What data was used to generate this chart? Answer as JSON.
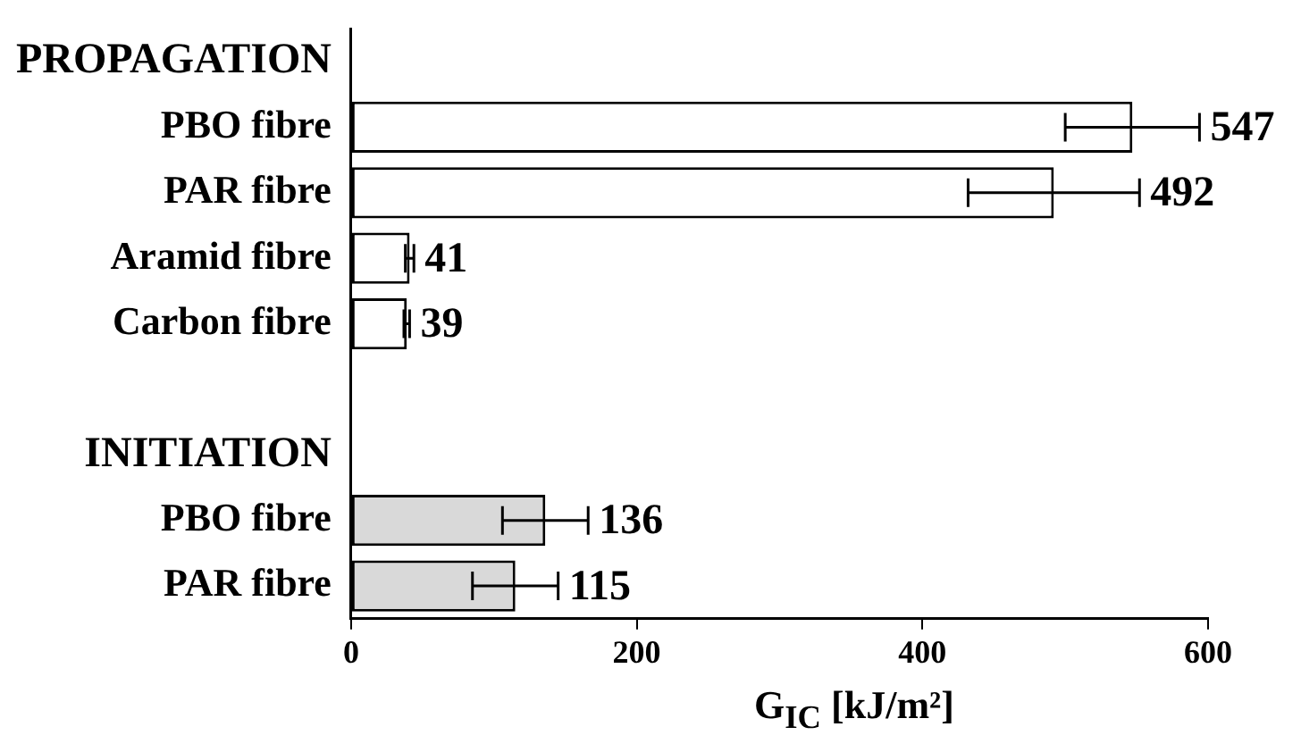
{
  "chart_data": {
    "type": "bar",
    "orientation": "horizontal",
    "xlabel": "G$_{IC}$ [kJ/m²]",
    "categories": [
      "PROPAGATION",
      "PBO fibre",
      "PAR fibre",
      "Aramid fibre",
      "Carbon fibre",
      null,
      "INITIATION",
      "PBO fibre",
      "PAR fibre"
    ],
    "values": [
      null,
      547,
      492,
      41,
      39,
      null,
      null,
      136,
      115
    ],
    "errors": [
      null,
      47,
      60,
      3,
      2,
      null,
      null,
      30,
      30
    ],
    "colors": [
      "#ffffff",
      "#ffffff",
      "#ffffff",
      "#ffffff",
      "#ffffff",
      "#ffffff",
      "#d9d9d9",
      "#d9d9d9",
      "#d9d9d9"
    ],
    "xlim": [
      0,
      600
    ],
    "xticks": [
      0,
      200,
      400,
      600
    ],
    "grid": false,
    "legend": false,
    "data_labels": true
  }
}
